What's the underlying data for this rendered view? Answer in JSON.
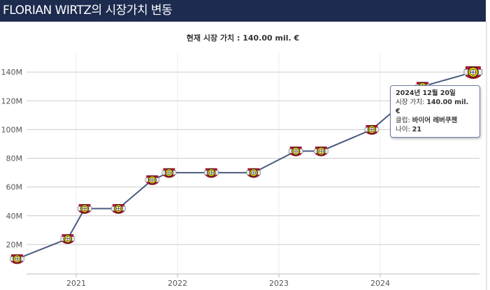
{
  "header": {
    "title": "FLORIAN WIRTZ의 시장가치 변동"
  },
  "chart_data": {
    "type": "line",
    "title": "현재 시장 가치 : 140.00 mil. €",
    "xlabel": "",
    "ylabel": "",
    "x_ticks": [
      "2021",
      "2022",
      "2023",
      "2024"
    ],
    "y_ticks": [
      "20M",
      "40M",
      "60M",
      "80M",
      "100M",
      "120M",
      "140M"
    ],
    "ylim": [
      0,
      150
    ],
    "grid": true,
    "line_color": "#4a5a80",
    "series": [
      {
        "name": "",
        "points": [
          {
            "x": "2020-06",
            "y": 10
          },
          {
            "x": "2020-12",
            "y": 24
          },
          {
            "x": "2021-02",
            "y": 45
          },
          {
            "x": "2021-06",
            "y": 45
          },
          {
            "x": "2021-10",
            "y": 65
          },
          {
            "x": "2021-12",
            "y": 70
          },
          {
            "x": "2022-05",
            "y": 70
          },
          {
            "x": "2022-10",
            "y": 70
          },
          {
            "x": "2023-03",
            "y": 85
          },
          {
            "x": "2023-06",
            "y": 85
          },
          {
            "x": "2023-12",
            "y": 100
          },
          {
            "x": "2024-06",
            "y": 130
          },
          {
            "x": "2024-12",
            "y": 140
          }
        ]
      }
    ]
  },
  "tooltip": {
    "date": "2024년 12월 20일",
    "value_label": "시장 가치:",
    "value": "140.00 mil. €",
    "club_label": "클럽:",
    "club": "바이어 레버쿠젠",
    "age_label": "나이:",
    "age": "21"
  }
}
